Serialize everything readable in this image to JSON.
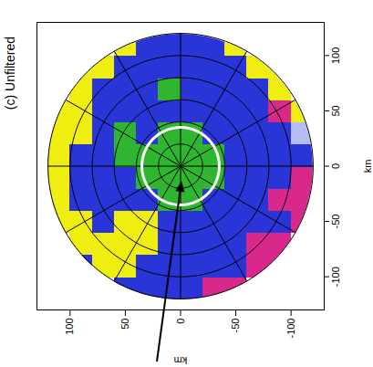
{
  "chart_data": {
    "type": "heatmap",
    "title": "(c) Unfiltered",
    "x_label": "km",
    "y_label": "km",
    "xlim": [
      -130,
      130
    ],
    "ylim": [
      -130,
      130
    ],
    "xticks": [
      -100,
      -50,
      0,
      50,
      100
    ],
    "yticks": [
      -100,
      -50,
      0,
      50,
      100
    ],
    "x_edges": [
      120,
      100,
      80,
      60,
      40,
      20,
      0,
      -20,
      -40,
      -60,
      -80,
      -100,
      -120
    ],
    "y_edges": [
      120,
      100,
      80,
      60,
      40,
      20,
      0,
      -20,
      -40,
      -60,
      -80,
      -100,
      -120
    ],
    "cell_colors": [
      [
        null,
        null,
        null,
        "#f0ee10",
        "#2a35d8",
        "#2a35d8",
        "#2a35d8",
        "#2a35d8",
        "#f0ee10",
        null,
        null,
        null
      ],
      [
        null,
        "#f0ee10",
        "#f0ee10",
        "#2a35d8",
        "#2a35d8",
        "#2a35d8",
        "#2a35d8",
        "#2a35d8",
        "#2a35d8",
        "#f0ee10",
        "#f0ee10",
        null
      ],
      [
        null,
        "#f0ee10",
        "#2a35d8",
        "#2a35d8",
        "#2a35d8",
        "#2fb52f",
        "#2a35d8",
        "#2a35d8",
        "#2a35d8",
        "#2a35d8",
        "#f0ee10",
        null
      ],
      [
        "#f0ee10",
        "#f0ee10",
        "#2a35d8",
        "#2a35d8",
        "#2a35d8",
        "#2a35d8",
        "#2a35d8",
        "#2a35d8",
        "#2a35d8",
        "#2a35d8",
        "#d8288c",
        "#f0ee10"
      ],
      [
        "#f0ee10",
        "#f0ee10",
        "#2a35d8",
        "#2fb52f",
        "#2a35d8",
        "#2fb52f",
        "#2fb52f",
        "#2a35d8",
        "#2a35d8",
        "#2a35d8",
        "#2a35d8",
        "#b4bcf5"
      ],
      [
        "#f0ee10",
        "#2a35d8",
        "#2a35d8",
        "#2fb52f",
        "#2fb52f",
        "#2fb52f",
        "#2fb52f",
        "#2fb52f",
        "#2a35d8",
        "#2a35d8",
        "#2a35d8",
        "#2a35d8"
      ],
      [
        "#f0ee10",
        "#2a35d8",
        "#2a35d8",
        "#2a35d8",
        "#2fb52f",
        "#2fb52f",
        "#2fb52f",
        "#2fb52f",
        "#2a35d8",
        "#2a35d8",
        "#2a35d8",
        "#d8288c"
      ],
      [
        "#f0ee10",
        "#2a35d8",
        "#2a35d8",
        "#2a35d8",
        "#2a35d8",
        "#2fb52f",
        "#2fb52f",
        "#2a35d8",
        "#2a35d8",
        "#2a35d8",
        "#d8288c",
        "#d8288c"
      ],
      [
        "#f0ee10",
        "#f0ee10",
        "#2a35d8",
        "#f0ee10",
        "#f0ee10",
        "#2a35d8",
        "#2a35d8",
        "#2a35d8",
        "#2a35d8",
        "#2a35d8",
        "#2a35d8",
        "#d8288c"
      ],
      [
        null,
        "#f0ee10",
        "#f0ee10",
        "#f0ee10",
        "#f0ee10",
        "#2a35d8",
        "#2a35d8",
        "#2a35d8",
        "#2a35d8",
        "#d8288c",
        "#d8288c",
        null
      ],
      [
        null,
        "#2a35d8",
        "#f0ee10",
        "#f0ee10",
        "#2a35d8",
        "#2a35d8",
        "#2a35d8",
        "#2a35d8",
        "#2a35d8",
        "#d8288c",
        "#d8288c",
        null
      ],
      [
        null,
        null,
        null,
        "#2a35d8",
        "#2a35d8",
        "#2a35d8",
        "#2a35d8",
        "#d8288c",
        "#d8288c",
        null,
        null,
        null
      ]
    ],
    "range_rings": [
      20,
      40,
      60,
      80,
      100,
      120
    ],
    "spoke_angles": [
      0,
      30,
      60,
      90,
      120,
      150,
      180,
      210,
      240,
      270,
      300,
      330
    ],
    "highlight_radius": 35
  }
}
